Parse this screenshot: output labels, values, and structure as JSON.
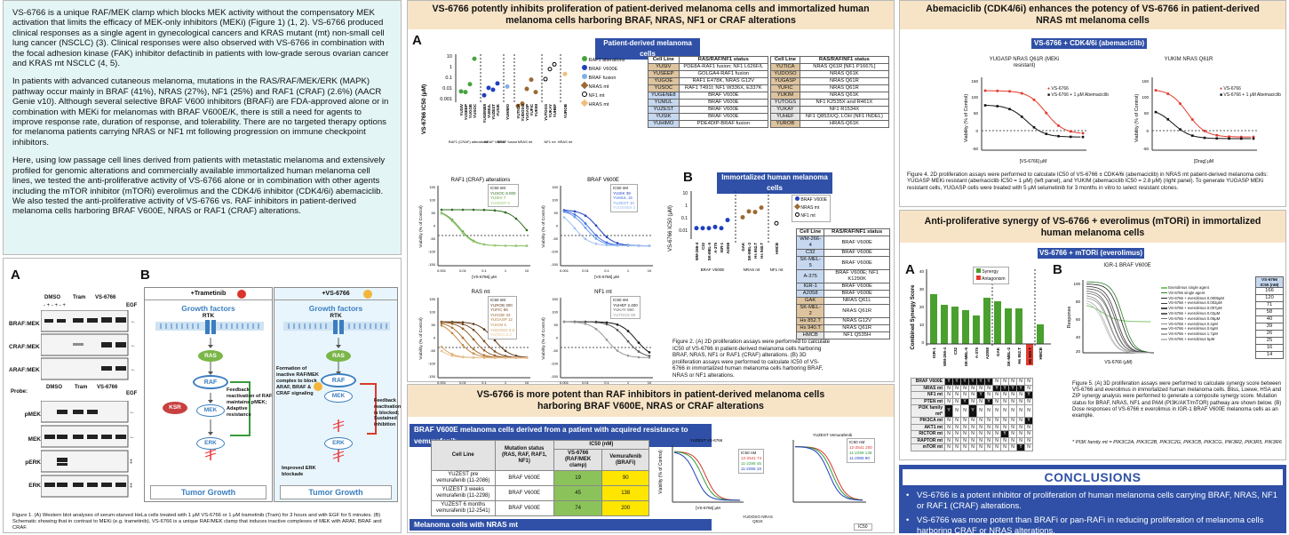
{
  "intro": {
    "paragraphs": [
      "VS-6766 is a unique RAF/MEK clamp which blocks MEK activity without the compensatory MEK activation that limits the efficacy of MEK-only inhibitors (MEKi) (Figure 1) (1, 2). VS-6766 produced clinical responses as a single agent in gynecological cancers and KRAS mutant (mt) non-small cell lung cancer (NSCLC) (3). Clinical responses were also observed with VS-6766 in combination with the focal adhesion kinase (FAK) inhibitor defactinib in patients with low-grade serous ovarian cancer and KRAS mt NSCLC (4, 5).",
      "In patients with advanced cutaneous melanoma, mutations in the RAS/RAF/MEK/ERK (MAPK) pathway occur mainly in BRAF (41%), NRAS (27%), NF1 (25%) and RAF1 (CRAF) (2.6%) (AACR Genie v10). Although several selective BRAF V600 inhibitors (BRAFi) are FDA-approved alone or in combination with MEKi for melanomas with BRAF V600E/K, there is still a need for agents to improve response rate, duration of response, and tolerability. There are no targeted therapy options for melanoma patients carrying NRAS or NF1 mt following progression on immune checkpoint inhibitors.",
      "Here, using low passage cell lines derived from patients with metastatic melanoma and extensively profiled for genomic alterations and commercially available immortalized human melanoma cell lines, we tested the anti-proliferative activity of VS-6766 alone or in combination with other agents including the mTOR inhibitor (mTORi) everolimus and the CDK4/6 inhibitor (CDK4/6i) abemaciclib. We also tested the anti-proliferative activity of VS-6766 vs. RAF inhibitors in patient-derived melanoma cells harboring BRAF V600E, NRAS or RAF1 (CRAF) alterations."
    ]
  },
  "fig1": {
    "label_a": "A",
    "label_b": "B",
    "dmso": "DMSO",
    "tram": "Tram",
    "vs": "VS-6766",
    "egf": "EGF",
    "plusminus": "-    +    -    +    -    +",
    "probe": "Probe:",
    "blots_top": [
      "BRAF:MEK",
      "CRAF:MEK",
      "ARAF:MEK"
    ],
    "blots_bot": [
      "pMEK",
      "MEK",
      "pERK",
      "ERK"
    ],
    "left_head": "+Trametinib",
    "right_head": "+VS-6766",
    "gf": "Growth factors",
    "rtk": "RTK",
    "ras": "RAS",
    "raf": "RAF",
    "ksr": "KSR",
    "mek": "MEK",
    "erk": "ERK",
    "tumor": "Tumor Growth",
    "left_note": "Feedback reactivation of RAF maintains pMEK; Adaptive resistance",
    "right_note_l": "Formation of inactive RAF/MEK complex to block ARAF, BRAF & CRAF signaling",
    "right_note_r": "Feedback reactivation is blocked; Sustained inhibition",
    "improved": "Improved ERK blockade",
    "caption": "Figure 1. (A) Western blot analyses of serum-starved HeLa cells treated with 1 μM VS-6766 or 1 μM trametinib (Tram) for 3 hours and with EGF for 5 minutes. (B) Schematic showing that in contrast to MEKi (e.g. trametinib), VS-6766 is a unique RAF/MEK clamp that induces inactive complexes of MEK with ARAF, BRAF and CRAF."
  },
  "fig2": {
    "title": "VS-6766 potently inhibits proliferation of patient-derived melanoma cells and immortalized human melanoma cells harboring BRAF, NRAS, NF1 or CRAF alterations",
    "label_a": "A",
    "label_b": "B",
    "bar_a": "Patient-derived melanoma cells",
    "bar_b": "Immortalized human melanoma cells",
    "yaxis_ic50": "VS-6766 IC50 (μM)",
    "legend_a": [
      "RAF1 alterations",
      "BRAF V600E",
      "BRAF fusion",
      "NRAS mt",
      "NF1 mt",
      "HRAS mt"
    ],
    "legend_b": [
      "BRAF V600E",
      "NRAS mt",
      "NF1 mt"
    ],
    "groups_a": [
      "RAF1 (CRAF) alterations",
      "BRAF V600E",
      "BRAF fusion",
      "NRAS mt",
      "NF1 mt",
      "HRAS mt"
    ],
    "groups_b": [
      "BRAF V600E",
      "NRAS mt",
      "NF1 mt"
    ],
    "table_head": [
      "Cell Line",
      "RAS/RAF/NF1 status"
    ],
    "table_left": [
      [
        "YUSIV",
        "PDE8A-RAF1 fusion; NF1 L626F/L",
        "o"
      ],
      [
        "YUSEEP",
        "GOLGA4-RAF1 fusion",
        "o"
      ],
      [
        "YUGOE",
        "RAF1 E478K, NRAS G12V",
        "o"
      ],
      [
        "YUSOC",
        "RAF1 T491I; NF1 W336X, E337K",
        "o"
      ],
      [
        "YUGENE8",
        "BRAF V600E",
        "b"
      ],
      [
        "YUMUL",
        "BRAF V600E",
        "b"
      ],
      [
        "YUZEST",
        "BRAF V600E",
        "b"
      ],
      [
        "YUSIK",
        "BRAF V600E",
        "b"
      ],
      [
        "YUHIMO",
        "PDE4DIP-BRAF fusion",
        "b"
      ]
    ],
    "table_right": [
      [
        "YUTICA",
        "NRAS Q61R [NF1 P1667L]",
        "o"
      ],
      [
        "YUDOSO",
        "NRAS Q61K",
        "o"
      ],
      [
        "YUGASP",
        "NRAS Q61R",
        "o"
      ],
      [
        "YUFIC",
        "NRAS Q61R",
        "o"
      ],
      [
        "YUKIM",
        "NRAS Q61K",
        "o"
      ],
      [
        "YUTOGS",
        "NF1 K2535X and R461X",
        "g"
      ],
      [
        "YUKAY",
        "NF1 R1534X",
        "g"
      ],
      [
        "YUHEF",
        "NF1 Q853X/Q, LOH (NF1 INDEL)",
        "g"
      ],
      [
        "YUROB",
        "HRAS-Q61K",
        "o"
      ]
    ],
    "table_b": [
      [
        "WM-266-4",
        "BRAF V600E",
        "b"
      ],
      [
        "C32",
        "BRAF V600E",
        "b"
      ],
      [
        "SK-MEL-5",
        "BRAF V600E",
        "b"
      ],
      [
        "A-375",
        "BRAF V600E; NF1 K1290K",
        "b"
      ],
      [
        "IGR-1",
        "BRAF V600E",
        "b"
      ],
      [
        "A2058",
        "BRAF V600E",
        "b"
      ],
      [
        "GAK",
        "NRAS Q61L",
        "o"
      ],
      [
        "SK-MEL-2",
        "NRAS Q61R",
        "o"
      ],
      [
        "Hs 852.T",
        "NRAS G12V",
        "o"
      ],
      [
        "Hs 940.T",
        "NRAS Q61R",
        "o"
      ],
      [
        "HMCB",
        "NF1 Q535H",
        "g"
      ]
    ],
    "curves": [
      {
        "title": "RAF1 (CRAF) alterations",
        "legend": [
          "IC50 nM",
          "YUSOC 8.000",
          "YUSIV 7",
          "YUSEEP 6"
        ]
      },
      {
        "title": "BRAF V600E",
        "legend": [
          "IC50 nM",
          "YUSIK 39",
          "YUMUL 15",
          "YUZEST 10",
          "YUGENE8 3"
        ]
      },
      {
        "title": "RAS mt",
        "legend": [
          "IC50 nM",
          "YUROB 300",
          "YUFIC 88",
          "YUGOE 33",
          "YUGASP 12",
          "YUKIM 6",
          "YUDOSO 0.5",
          "YUTICA 0.3"
        ]
      },
      {
        "title": "NF1 mt",
        "legend": [
          "IC50 nM",
          "YUHEF 2,400",
          "YUKAY 860",
          "YUTOGS 99"
        ]
      }
    ],
    "viab": "Viability (% of Control)",
    "xunit": "[VS-6766] μM",
    "caption": "Figure 2. (A) 2D proliferation assays were performed to calculate IC50 of VS-6766 in patient-derived melanoma cells harboring BRAF, NRAS, NF1 or RAF1 (CRAF) alterations. (B) 3D proliferation assays were performed to calculate IC50 of VS-6766 in immortalized human melanoma cells harboring BRAF, NRAS or NF1 alterations."
  },
  "fig3": {
    "title": "VS-6766 is more potent than RAF inhibitors in patient-derived melanoma cells harboring BRAF V600E, NRAS or CRAF alterations",
    "bar1": "BRAF V600E melanoma cells derived from a patient with acquired resistance to vemurafenib",
    "bar2": "Melanoma cells with NRAS mt",
    "head": [
      "Cell Line",
      "Mutation status (RAS, RAF, RAF1, NF1)",
      "IC50 (nM)",
      "VS-6766 (RAF/MEK clamp)",
      "Vemurafenib (BRAFi)"
    ],
    "rows": [
      [
        "YUZEST pre vemurafenib (11-2086)",
        "BRAF V600E",
        "19",
        "90"
      ],
      [
        "YUZEST 3 weeks vemurafenib (11-2298)",
        "BRAF V600E",
        "45",
        "138"
      ],
      [
        "YUZEST 6 months vemurafenib (12-2541)",
        "BRAF V600E",
        "74",
        "200"
      ]
    ],
    "leg1": [
      "IC50 nM",
      "12-2541 74",
      "11-2298 45",
      "11-2086 19"
    ],
    "leg2": [
      "IC50 nM",
      "12-2541 200",
      "11-2298 138",
      "11-2086 90"
    ],
    "c1": "YUZEST VS-6766",
    "c2": "YUZEST Vemurafenib",
    "yudoso": "YUDOSO NRAS Q61K",
    "ic50": "IC50"
  },
  "fig4": {
    "title": "Abemaciclib (CDK4/6i) enhances the potency of VS-6766 in patient-derived NRAS mt melanoma cells",
    "bar": "VS-6766 + CDK4/6i (abemaciclib)",
    "left_title": "YUGASP NRAS Q61R (MEKi resistant)",
    "right_title": "YUKIM NRAS Q61R",
    "leg_l": [
      "VS-6766",
      "VS-6766 + 1 μM Abemaciclib"
    ],
    "leg_r": [
      "VS-6766",
      "VS-6766 + 1 μM Abemaciclib"
    ],
    "caption": "Figure 4. 2D proliferation assays were performed to calculate IC50 of VS-6766 ± CDK4/6i (abemaciclib) in NRAS mt patient-derived melanoma cells: YUGASP MEKi resistant (abemaciclib IC50 = 1 μM) (left panel), and YUKIM (abemaciclib IC50 = 2.8 μM) (right panel). To generate YUGASP MEKi resistant cells, YUGASP cells were treated with 5 μM selumetinib for 3 months in vitro to select resistant clones.",
    "drug": "[Drug] μM"
  },
  "fig5": {
    "title": "Anti-proliferative synergy of VS-6766 + everolimus (mTORi) in immortalized human melanoma cells",
    "bar": "VS-6766 + mTORi (everolimus)",
    "label_a": "A",
    "label_b": "B",
    "leg": [
      "Synergy",
      "Antagonism"
    ],
    "yaxis": "Combined Synergy Score",
    "cells": [
      "IGR-1",
      "WM-266-4",
      "C32",
      "SK-MEL-5",
      "A-375",
      "A2058",
      "GAK",
      "SK-MEL-2",
      "Hs 852.T",
      "Hs 940.T",
      "HMCB"
    ],
    "scores": [
      28,
      22,
      21,
      19,
      16,
      26,
      24,
      20,
      20,
      -12,
      11
    ],
    "mut_rows": [
      [
        "BRAF V600E",
        "YYYYYYNNNNN"
      ],
      [
        "NRAS mt",
        "NNNNNNYYYYN"
      ],
      [
        "NF1 mt",
        "NNNNYNNNNNY"
      ],
      [
        "PTEN mt",
        "NNYNNYNNNNN"
      ],
      [
        "PI3K family mt*",
        "YNNYNNNNNNN"
      ],
      [
        "PIK3CA mt",
        "NNNNNNNNNNY"
      ],
      [
        "AKT1 mt",
        "NNNNNNNNNNN"
      ],
      [
        "RICTOR mt",
        "NNNNNNNYNNN"
      ],
      [
        "RAPTOR mt",
        "NNNNNNNNNNN"
      ],
      [
        "mTOR mt",
        "NNNNNNNNNYN"
      ]
    ],
    "b_title": "IGR-1 BRAF V600E",
    "b_y": "Response",
    "b_x": "VS-6766 (μM)",
    "b_leg": [
      "Everolimus single agent",
      "VS-6766 single agent",
      "VS-6766 + everolimus 0.0005μM",
      "VS-6766 + everolimus 0.002μM",
      "VS-6766 + everolimus 0.007μM",
      "VS-6766 + everolimus 0.02μM",
      "VS-6766 + everolimus 0.06μM",
      "VS-6766 + everolimus 0.2μM",
      "VS-6766 + everolimus 0.6μM",
      "VS-6766 + everolimus 1.7μM",
      "VS-6766 + everolimus 5μM"
    ],
    "b_ic_head": "VS-6766 IC50 (nM)",
    "b_ic": [
      "166",
      "120",
      "71",
      "58",
      "40",
      "39",
      "26",
      "25",
      "16",
      "14"
    ],
    "caption": "Figure 5. (A) 3D proliferation assays were performed to calculate synergy score between VS-6766 and everolimus in immortalized human melanoma cells. Bliss, Loewe, HSA and ZIP synergy analysis were performed to generate a composite synergy score. Mutation status for BRAF, NRAS, NF1 and PAM (PI3K/AKT/mTOR) pathway are shown below. (B) Dose responses of VS-6766 ± everolimus in IGR-1 BRAF V600E melanoma cells as an example.",
    "footnote": "* PI3K family mt = PIK3C2A, PIK3C2B, PIK3C2G, PIK3CB, PIK3CG, PIK3R2, PIK3R5, PIK3R6"
  },
  "conclusions": {
    "title": "CONCLUSIONS",
    "items": [
      "VS-6766 is a potent inhibitor of proliferation of human melanoma cells carrying BRAF, NRAS, NF1 or RAF1 (CRAF) alterations.",
      "VS-6766 was more potent than BRAFi or pan-RAFi in reducing proliferation of melanoma cells harboring CRAF or NRAS alterations."
    ]
  },
  "colors": {
    "blue": "#2f50a6",
    "tan": "#f7e4c7",
    "mint": "#e4f5f5",
    "green": "#5a9e2f",
    "orange": "#c9863a",
    "red": "#e53a2f"
  }
}
